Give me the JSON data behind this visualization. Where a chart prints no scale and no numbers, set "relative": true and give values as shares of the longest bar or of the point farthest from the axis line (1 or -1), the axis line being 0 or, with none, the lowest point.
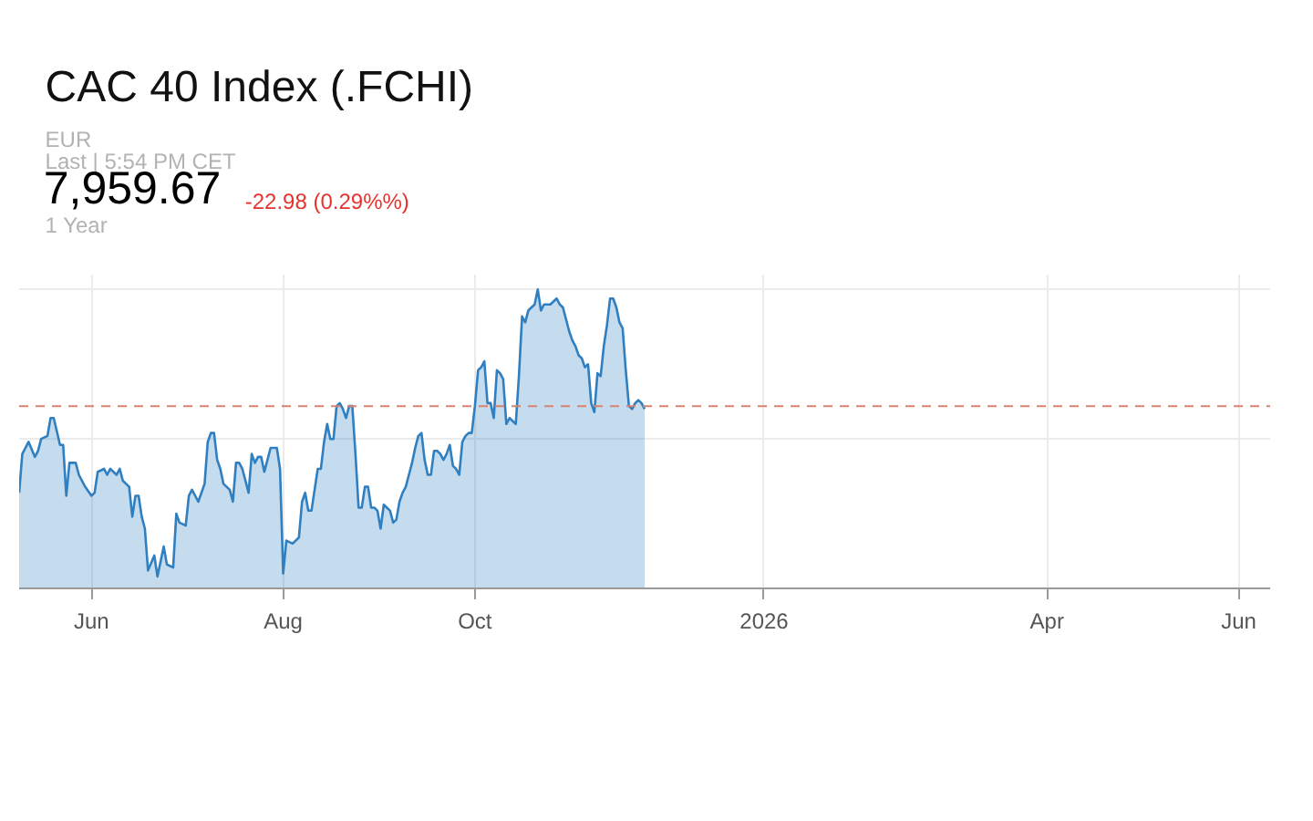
{
  "chart_data": {
    "type": "area",
    "title": "CAC 40 Index (.FCHI)",
    "annotations": [
      "EUR",
      "Last | 5:54 PM CET",
      "7,959.67",
      "-22.98 (0.29%%)",
      "1 Year"
    ],
    "relative": true,
    "grid": true,
    "xlim": [
      "2025-05-09",
      "2026-06-11"
    ],
    "xticks": [
      {
        "value": "2025-06-01",
        "label": "Jun"
      },
      {
        "value": "2025-08-01",
        "label": "Aug"
      },
      {
        "value": "2025-10-01",
        "label": "Oct"
      },
      {
        "value": "2026-01-01",
        "label": "2026"
      },
      {
        "value": "2026-04-01",
        "label": "Apr"
      },
      {
        "value": "2026-06-01",
        "label": "Jun"
      }
    ],
    "ref_lines": [
      {
        "axis": "y",
        "value": 0.61,
        "color": "#d9826f",
        "line_style": "dashed"
      }
    ],
    "x": [
      "2025-05-09",
      "2025-05-10",
      "2025-05-12",
      "2025-05-14",
      "2025-05-15",
      "2025-05-16",
      "2025-05-18",
      "2025-05-19",
      "2025-05-20",
      "2025-05-22",
      "2025-05-23",
      "2025-05-24",
      "2025-05-25",
      "2025-05-27",
      "2025-05-28",
      "2025-05-30",
      "2025-06-01",
      "2025-06-02",
      "2025-06-03",
      "2025-06-05",
      "2025-06-06",
      "2025-06-07",
      "2025-06-09",
      "2025-06-10",
      "2025-06-11",
      "2025-06-13",
      "2025-06-14",
      "2025-06-15",
      "2025-06-16",
      "2025-06-17",
      "2025-06-18",
      "2025-06-19",
      "2025-06-21",
      "2025-06-22",
      "2025-06-24",
      "2025-06-25",
      "2025-06-27",
      "2025-06-28",
      "2025-06-29",
      "2025-07-01",
      "2025-07-02",
      "2025-07-03",
      "2025-07-05",
      "2025-07-07",
      "2025-07-08",
      "2025-07-09",
      "2025-07-10",
      "2025-07-11",
      "2025-07-12",
      "2025-07-13",
      "2025-07-15",
      "2025-07-16",
      "2025-07-17",
      "2025-07-18",
      "2025-07-19",
      "2025-07-21",
      "2025-07-22",
      "2025-07-23",
      "2025-07-24",
      "2025-07-25",
      "2025-07-26",
      "2025-07-28",
      "2025-07-30",
      "2025-07-31",
      "2025-08-01",
      "2025-08-02",
      "2025-08-04",
      "2025-08-06",
      "2025-08-07",
      "2025-08-08",
      "2025-08-09",
      "2025-08-10",
      "2025-08-11",
      "2025-08-12",
      "2025-08-13",
      "2025-08-14",
      "2025-08-15",
      "2025-08-16",
      "2025-08-17",
      "2025-08-18",
      "2025-08-19",
      "2025-08-20",
      "2025-08-21",
      "2025-08-22",
      "2025-08-23",
      "2025-08-24",
      "2025-08-25",
      "2025-08-26",
      "2025-08-27",
      "2025-08-28",
      "2025-08-29",
      "2025-08-30",
      "2025-08-31",
      "2025-09-01",
      "2025-09-02",
      "2025-09-03",
      "2025-09-04",
      "2025-09-05",
      "2025-09-06",
      "2025-09-07",
      "2025-09-08",
      "2025-09-09",
      "2025-09-10",
      "2025-09-11",
      "2025-09-12",
      "2025-09-13",
      "2025-09-14",
      "2025-09-15",
      "2025-09-16",
      "2025-09-17",
      "2025-09-18",
      "2025-09-19",
      "2025-09-20",
      "2025-09-21",
      "2025-09-22",
      "2025-09-23",
      "2025-09-24",
      "2025-09-25",
      "2025-09-26",
      "2025-09-27",
      "2025-09-28",
      "2025-09-29",
      "2025-09-30",
      "2025-10-01",
      "2025-10-02",
      "2025-10-03",
      "2025-10-04",
      "2025-10-05",
      "2025-10-06",
      "2025-10-07",
      "2025-10-08",
      "2025-10-09",
      "2025-10-10",
      "2025-10-11",
      "2025-10-12",
      "2025-10-13",
      "2025-10-14",
      "2025-10-15",
      "2025-10-16",
      "2025-10-17",
      "2025-10-18",
      "2025-10-19",
      "2025-10-20",
      "2025-10-21",
      "2025-10-22",
      "2025-10-23",
      "2025-10-24",
      "2025-10-25",
      "2025-10-26",
      "2025-10-27",
      "2025-10-28",
      "2025-10-29",
      "2025-10-30",
      "2025-10-31",
      "2025-11-01",
      "2025-11-02",
      "2025-11-03",
      "2025-11-04",
      "2025-11-05",
      "2025-11-06",
      "2025-11-07",
      "2025-11-08",
      "2025-11-09",
      "2025-11-10",
      "2025-11-11",
      "2025-11-12",
      "2025-11-13",
      "2025-11-14",
      "2025-11-15",
      "2025-11-16",
      "2025-11-17",
      "2025-11-18",
      "2025-11-19",
      "2025-11-20",
      "2025-11-21",
      "2025-11-22",
      "2025-11-23",
      "2025-11-24"
    ],
    "series": [
      {
        "color": "#2f7fc1",
        "values": [
          0.32,
          0.45,
          0.49,
          0.44,
          0.46,
          0.5,
          0.51,
          0.57,
          0.57,
          0.48,
          0.48,
          0.31,
          0.42,
          0.42,
          0.38,
          0.34,
          0.31,
          0.32,
          0.39,
          0.4,
          0.38,
          0.4,
          0.38,
          0.4,
          0.36,
          0.34,
          0.24,
          0.31,
          0.31,
          0.24,
          0.2,
          0.06,
          0.11,
          0.04,
          0.14,
          0.08,
          0.07,
          0.25,
          0.22,
          0.21,
          0.31,
          0.33,
          0.29,
          0.35,
          0.49,
          0.52,
          0.52,
          0.43,
          0.4,
          0.35,
          0.33,
          0.29,
          0.42,
          0.42,
          0.4,
          0.32,
          0.45,
          0.42,
          0.44,
          0.44,
          0.39,
          0.47,
          0.47,
          0.4,
          0.05,
          0.16,
          0.15,
          0.17,
          0.29,
          0.32,
          0.26,
          0.26,
          0.33,
          0.4,
          0.4,
          0.49,
          0.55,
          0.5,
          0.5,
          0.61,
          0.62,
          0.6,
          0.57,
          0.61,
          0.61,
          0.45,
          0.27,
          0.27,
          0.34,
          0.34,
          0.27,
          0.27,
          0.26,
          0.2,
          0.28,
          0.27,
          0.26,
          0.22,
          0.23,
          0.29,
          0.32,
          0.34,
          0.38,
          0.42,
          0.47,
          0.51,
          0.52,
          0.43,
          0.38,
          0.38,
          0.46,
          0.46,
          0.45,
          0.43,
          0.45,
          0.48,
          0.41,
          0.4,
          0.38,
          0.49,
          0.51,
          0.52,
          0.52,
          0.61,
          0.73,
          0.74,
          0.76,
          0.62,
          0.62,
          0.57,
          0.73,
          0.72,
          0.7,
          0.55,
          0.57,
          0.56,
          0.55,
          0.71,
          0.91,
          0.89,
          0.93,
          0.94,
          0.95,
          1.0,
          0.93,
          0.95,
          0.95,
          0.95,
          0.96,
          0.97,
          0.95,
          0.94,
          0.9,
          0.86,
          0.83,
          0.81,
          0.78,
          0.77,
          0.74,
          0.75,
          0.62,
          0.59,
          0.72,
          0.71,
          0.81,
          0.88,
          0.97,
          0.97,
          0.94,
          0.89,
          0.87,
          0.73,
          0.61,
          0.6,
          0.62,
          0.63,
          0.62,
          0.6
        ]
      }
    ]
  }
}
